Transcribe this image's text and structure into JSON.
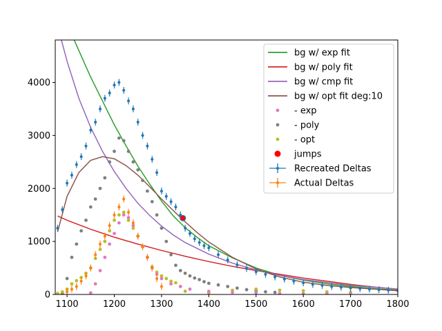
{
  "chart_data": {
    "type": "scatter",
    "title": "",
    "xlabel": "",
    "ylabel": "",
    "xlim": [
      1075,
      1800
    ],
    "ylim": [
      0,
      4800
    ],
    "x_ticks": [
      1100,
      1200,
      1300,
      1400,
      1500,
      1600,
      1700,
      1800
    ],
    "y_ticks": [
      0,
      1000,
      2000,
      3000,
      4000
    ],
    "legend_position": "top-right",
    "grid": false,
    "colors": {
      "exp": "#2ca02c",
      "poly": "#d62728",
      "cmp": "#9467bd",
      "opt": "#8c564b",
      "exp_pts": "#e377c2",
      "poly_pts": "#7f7f7f",
      "opt_pts": "#bcbd22",
      "jumps": "#ff0000",
      "recreated": "#1f77b4",
      "actual": "#ff7f0e"
    },
    "legend": [
      {
        "label": "bg w/ exp fit",
        "kind": "line",
        "color": "#2ca02c"
      },
      {
        "label": "bg w/ poly fit",
        "kind": "line",
        "color": "#d62728"
      },
      {
        "label": "bg w/ cmp fit",
        "kind": "line",
        "color": "#9467bd"
      },
      {
        "label": "bg w/ opt fit deg:10",
        "kind": "line",
        "color": "#8c564b"
      },
      {
        "label": "- exp",
        "kind": "dot",
        "color": "#e377c2"
      },
      {
        "label": "- poly",
        "kind": "dot",
        "color": "#7f7f7f"
      },
      {
        "label": "- opt",
        "kind": "dot",
        "color": "#bcbd22"
      },
      {
        "label": "jumps",
        "kind": "bigdot",
        "color": "#ff0000"
      },
      {
        "label": "Recreated Deltas",
        "kind": "errbar",
        "color": "#1f77b4"
      },
      {
        "label": "Actual Deltas",
        "kind": "errbar",
        "color": "#ff7f0e"
      }
    ],
    "series": [
      {
        "name": "bg w/ exp fit",
        "type": "line",
        "color": "#2ca02c",
        "x": [
          1115,
          1130,
          1150,
          1175,
          1200,
          1225,
          1250,
          1275,
          1300,
          1325,
          1350,
          1375,
          1400,
          1450,
          1500,
          1550,
          1600,
          1650,
          1700,
          1750,
          1800
        ],
        "y": [
          4800,
          4500,
          4100,
          3650,
          3200,
          2800,
          2420,
          2080,
          1760,
          1480,
          1260,
          1080,
          920,
          690,
          500,
          360,
          270,
          200,
          150,
          110,
          80
        ]
      },
      {
        "name": "bg w/ poly fit",
        "type": "line",
        "color": "#d62728",
        "x": [
          1080,
          1100,
          1150,
          1200,
          1250,
          1300,
          1350,
          1400,
          1450,
          1500,
          1550,
          1600,
          1650,
          1700,
          1750,
          1800
        ],
        "y": [
          1480,
          1400,
          1230,
          1080,
          950,
          830,
          720,
          620,
          530,
          450,
          380,
          310,
          250,
          190,
          140,
          100
        ]
      },
      {
        "name": "bg w/ cmp fit",
        "type": "line",
        "color": "#9467bd",
        "x": [
          1088,
          1100,
          1125,
          1150,
          1175,
          1200,
          1225,
          1250,
          1275,
          1300,
          1325,
          1350,
          1400,
          1450,
          1500,
          1550,
          1600,
          1700,
          1800
        ],
        "y": [
          4800,
          4400,
          3700,
          3150,
          2700,
          2320,
          2000,
          1720,
          1490,
          1290,
          1120,
          980,
          760,
          590,
          460,
          360,
          280,
          170,
          100
        ]
      },
      {
        "name": "bg w/ opt fit deg:10",
        "type": "line",
        "color": "#8c564b",
        "x": [
          1080,
          1100,
          1125,
          1150,
          1175,
          1200,
          1225,
          1250,
          1275,
          1300,
          1325,
          1350,
          1375,
          1400,
          1450,
          1500,
          1550,
          1600,
          1650,
          1700,
          1750,
          1800
        ],
        "y": [
          1180,
          1850,
          2300,
          2530,
          2600,
          2560,
          2430,
          2250,
          2030,
          1800,
          1580,
          1370,
          1170,
          990,
          700,
          480,
          330,
          230,
          170,
          130,
          100,
          70
        ]
      },
      {
        "name": "- poly",
        "type": "scatter",
        "color": "#7f7f7f",
        "x": [
          1090,
          1100,
          1110,
          1120,
          1130,
          1140,
          1150,
          1160,
          1170,
          1180,
          1190,
          1200,
          1210,
          1220,
          1230,
          1240,
          1250,
          1260,
          1270,
          1280,
          1290,
          1300,
          1310,
          1320,
          1330,
          1340,
          1350,
          1360,
          1370,
          1380,
          1390,
          1400,
          1420,
          1440,
          1460,
          1480,
          1500,
          1520,
          1540
        ],
        "y": [
          20,
          300,
          700,
          950,
          1200,
          1400,
          1650,
          1800,
          2000,
          2200,
          2500,
          2700,
          2950,
          2900,
          2700,
          2500,
          2350,
          2150,
          1950,
          1750,
          1500,
          1250,
          1000,
          750,
          550,
          450,
          400,
          350,
          310,
          280,
          240,
          210,
          180,
          150,
          120,
          90,
          70,
          50,
          40
        ]
      },
      {
        "name": "- opt",
        "type": "scatter",
        "color": "#bcbd22",
        "x": [
          1080,
          1090,
          1100,
          1110,
          1120,
          1130,
          1140,
          1150,
          1160,
          1170,
          1180,
          1190,
          1200,
          1210,
          1220,
          1230,
          1240,
          1250,
          1260,
          1270,
          1280,
          1290,
          1300,
          1310,
          1320,
          1330,
          1340,
          1350,
          1400,
          1450,
          1500,
          1550,
          1600,
          1650,
          1700
        ],
        "y": [
          20,
          50,
          100,
          200,
          260,
          320,
          400,
          500,
          680,
          850,
          1000,
          1200,
          1400,
          1500,
          1550,
          1400,
          1250,
          1100,
          900,
          700,
          520,
          420,
          350,
          300,
          250,
          220,
          150,
          60,
          30,
          80,
          100,
          80,
          70,
          50,
          40
        ]
      },
      {
        "name": "- exp",
        "type": "scatter",
        "color": "#e377c2",
        "x": [
          1150,
          1160,
          1170,
          1180,
          1190,
          1200,
          1210,
          1220,
          1230,
          1240,
          1250,
          1260,
          1270,
          1280,
          1290,
          1300,
          1320,
          1340,
          1360,
          1400,
          1450,
          1500,
          1550,
          1600,
          1650,
          1700
        ],
        "y": [
          30,
          200,
          450,
          700,
          950,
          1150,
          1350,
          1500,
          1450,
          1300,
          1100,
          900,
          700,
          500,
          380,
          300,
          200,
          150,
          100,
          60,
          40,
          30,
          20,
          15,
          10,
          5
        ]
      },
      {
        "name": "jumps",
        "type": "scatter",
        "color": "#ff0000",
        "x": [
          1345
        ],
        "y": [
          1440
        ]
      },
      {
        "name": "Recreated Deltas",
        "type": "errorbar",
        "color": "#1f77b4",
        "x": [
          1080,
          1090,
          1100,
          1110,
          1120,
          1130,
          1140,
          1150,
          1160,
          1170,
          1180,
          1190,
          1200,
          1210,
          1220,
          1230,
          1240,
          1250,
          1260,
          1270,
          1280,
          1290,
          1300,
          1310,
          1320,
          1330,
          1340,
          1350,
          1360,
          1370,
          1380,
          1390,
          1400,
          1420,
          1440,
          1460,
          1480,
          1500,
          1520,
          1540,
          1560,
          1580,
          1600,
          1620,
          1640,
          1660,
          1680,
          1700,
          1720,
          1740,
          1760,
          1780,
          1800
        ],
        "y": [
          1250,
          1600,
          2100,
          2250,
          2450,
          2600,
          2800,
          3100,
          3250,
          3500,
          3700,
          3800,
          3950,
          4000,
          3850,
          3650,
          3500,
          3250,
          3000,
          2800,
          2550,
          2300,
          1950,
          1850,
          1750,
          1650,
          1500,
          1250,
          1150,
          1050,
          980,
          920,
          880,
          750,
          650,
          560,
          490,
          430,
          380,
          330,
          290,
          250,
          220,
          190,
          170,
          150,
          135,
          120,
          110,
          100,
          90,
          80,
          70
        ]
      },
      {
        "name": "Actual Deltas",
        "type": "errorbar",
        "color": "#ff7f0e",
        "x": [
          1100,
          1110,
          1120,
          1130,
          1140,
          1150,
          1160,
          1170,
          1180,
          1190,
          1200,
          1210,
          1220,
          1230,
          1240,
          1250,
          1260,
          1270,
          1280,
          1290,
          1300
        ],
        "y": [
          50,
          100,
          150,
          250,
          350,
          500,
          750,
          950,
          1100,
          1300,
          1500,
          1650,
          1800,
          1550,
          1350,
          1100,
          900,
          700,
          500,
          300,
          150
        ]
      }
    ]
  }
}
